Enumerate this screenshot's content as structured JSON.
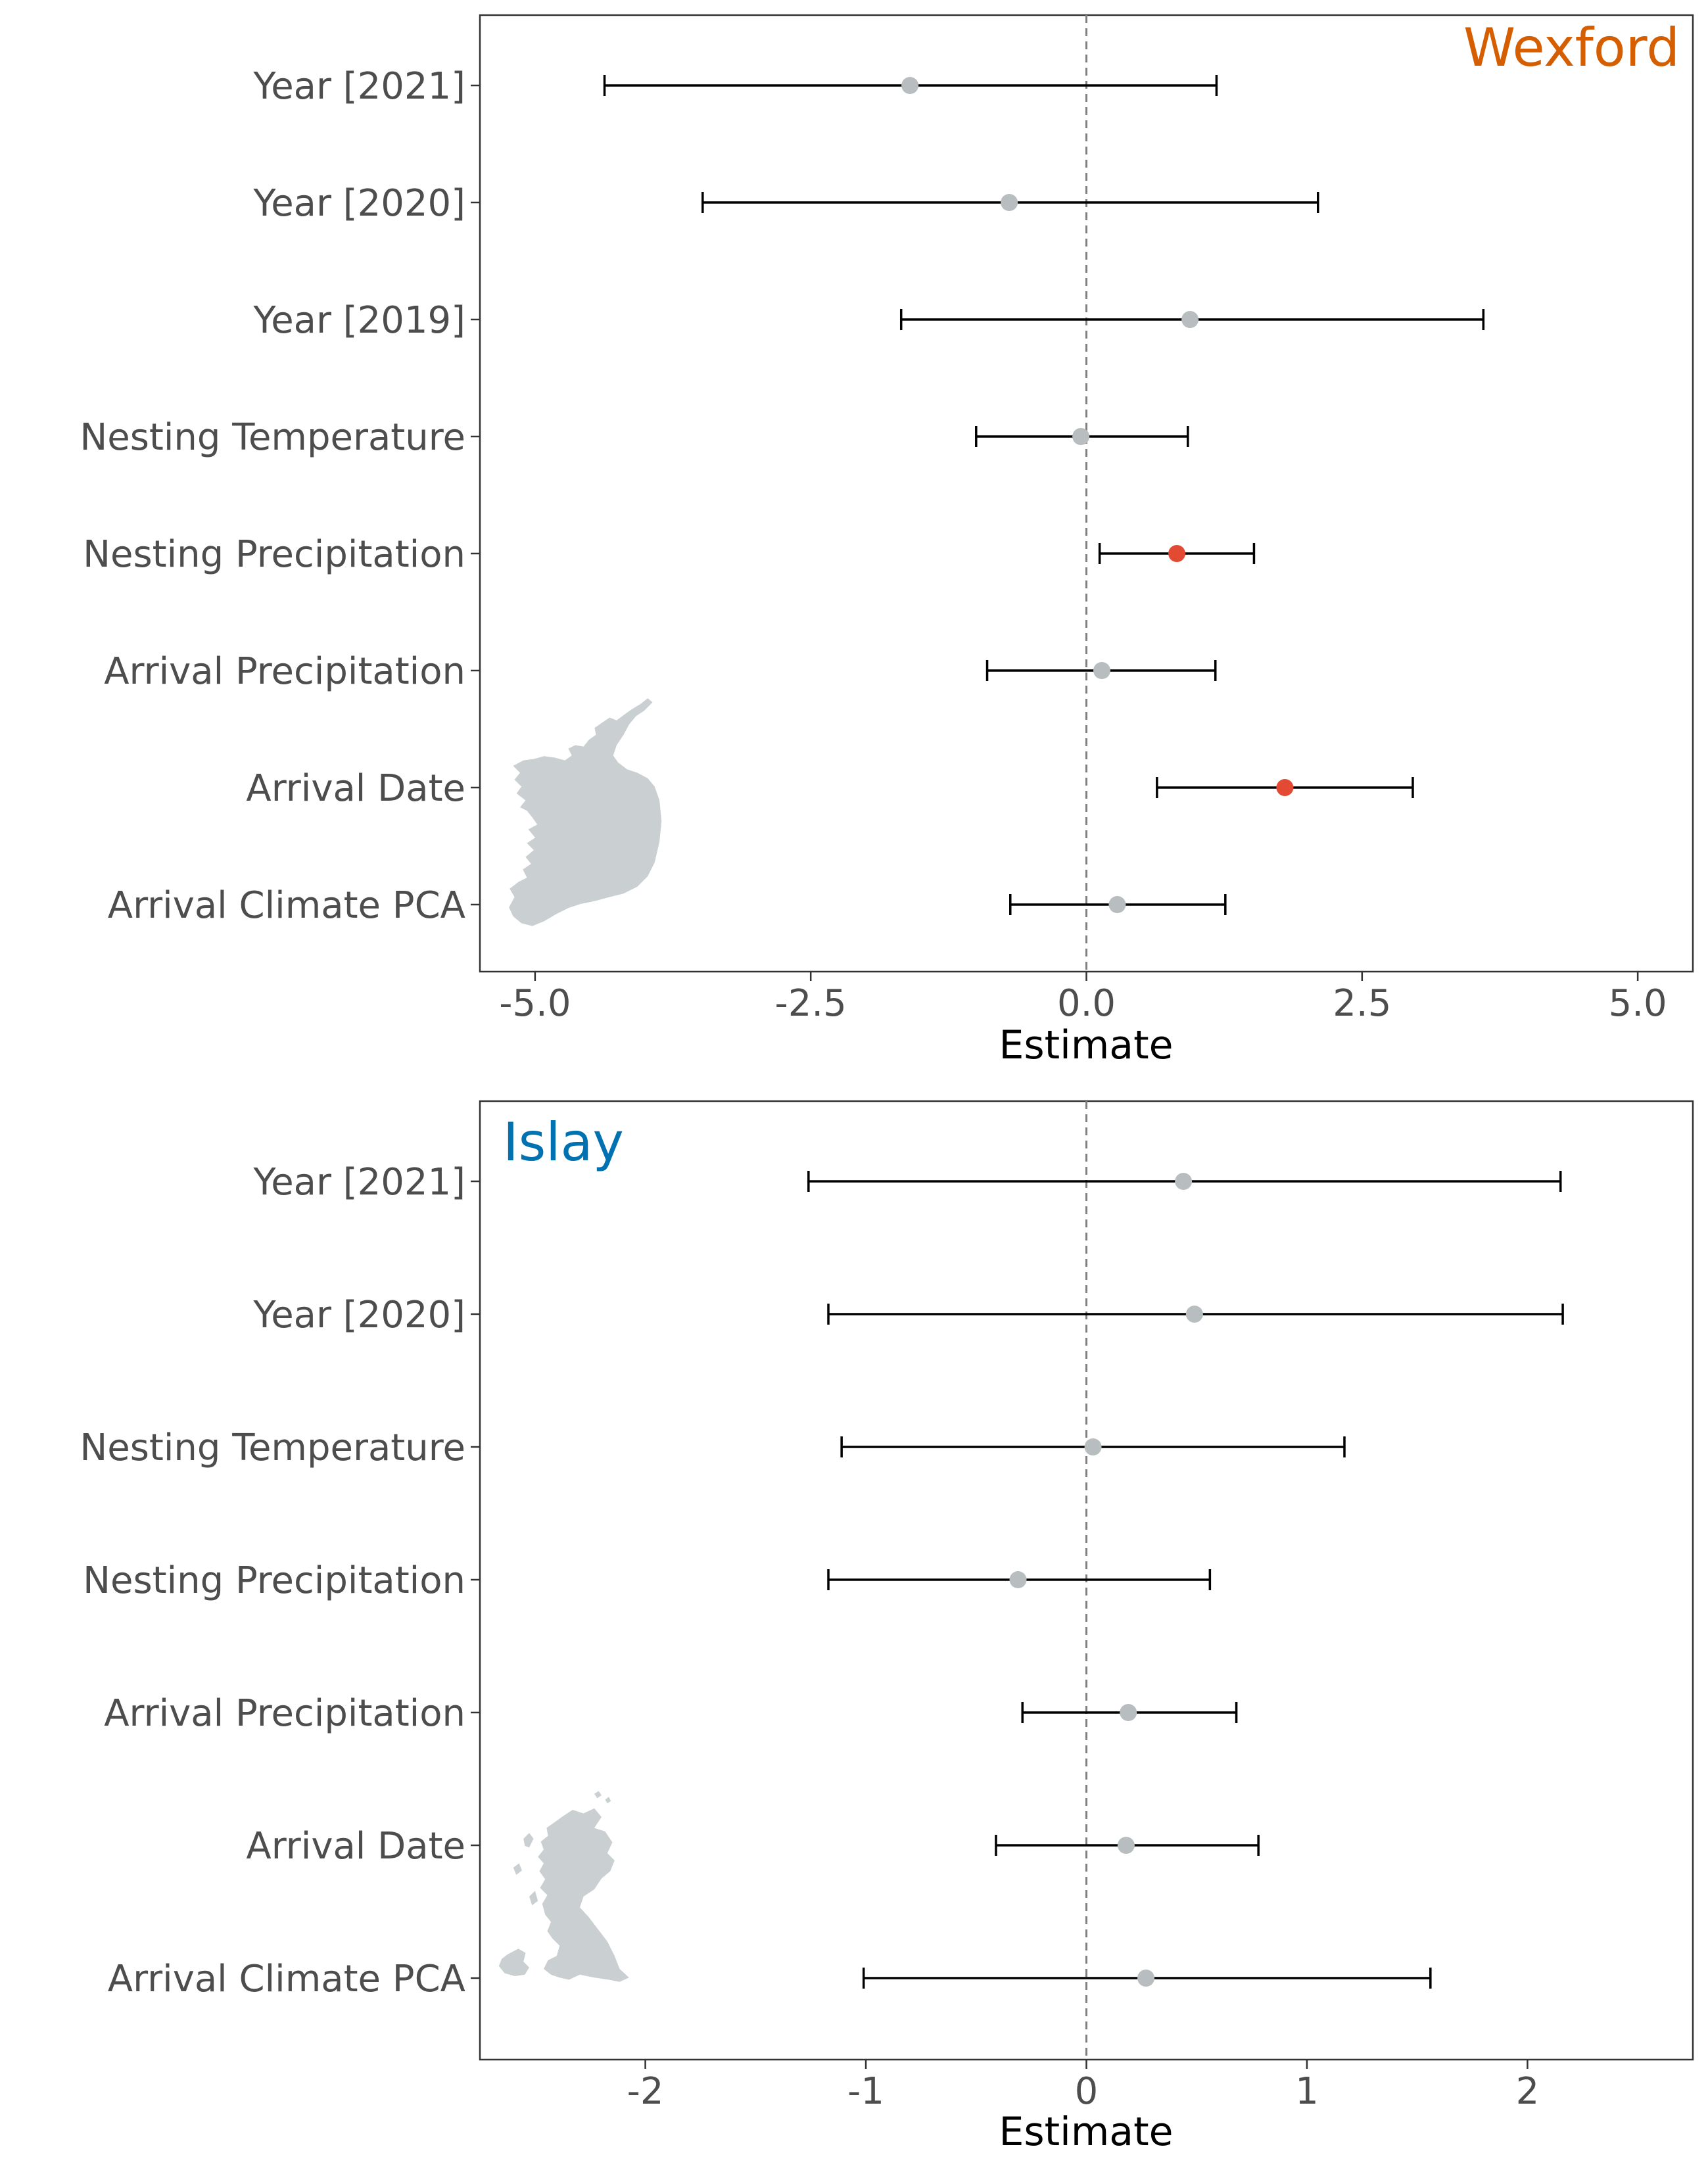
{
  "colors": {
    "significant": "#e34a33",
    "nonsignificant": "#b8bdbf",
    "wexford_label": "#d55e00",
    "islay_label": "#0072b2",
    "map_fill": "#cacfd1",
    "axis_text": "#4d4d4d",
    "zero_line": "#7f7f7f"
  },
  "chart_data": [
    {
      "type": "scatter",
      "subtype": "coefficient-plot-with-error-bars",
      "panel_label": "Wexford",
      "xlabel": "Estimate",
      "xlim": [
        -5.5,
        5.5
      ],
      "xticks": [
        -5.0,
        -2.5,
        0.0,
        2.5,
        5.0
      ],
      "xtick_labels": [
        "-5.0",
        "-2.5",
        "0.0",
        "2.5",
        "5.0"
      ],
      "reference_line": 0,
      "grid": false,
      "inset_icon": "ireland-map-icon",
      "rows": [
        {
          "label": "Year [2021]",
          "estimate": -1.6,
          "lower": -4.37,
          "upper": 1.18,
          "significant": false
        },
        {
          "label": "Year [2020]",
          "estimate": -0.7,
          "lower": -3.48,
          "upper": 2.1,
          "significant": false
        },
        {
          "label": "Year [2019]",
          "estimate": 0.94,
          "lower": -1.68,
          "upper": 3.6,
          "significant": false
        },
        {
          "label": "Nesting Temperature",
          "estimate": -0.05,
          "lower": -1.0,
          "upper": 0.92,
          "significant": false
        },
        {
          "label": "Nesting Precipitation",
          "estimate": 0.82,
          "lower": 0.12,
          "upper": 1.52,
          "significant": true
        },
        {
          "label": "Arrival Precipitation",
          "estimate": 0.14,
          "lower": -0.9,
          "upper": 1.17,
          "significant": false
        },
        {
          "label": "Arrival Date",
          "estimate": 1.8,
          "lower": 0.64,
          "upper": 2.96,
          "significant": true
        },
        {
          "label": "Arrival Climate PCA",
          "estimate": 0.28,
          "lower": -0.69,
          "upper": 1.26,
          "significant": false
        }
      ]
    },
    {
      "type": "scatter",
      "subtype": "coefficient-plot-with-error-bars",
      "panel_label": "Islay",
      "xlabel": "Estimate",
      "xlim": [
        -2.75,
        2.75
      ],
      "xticks": [
        -2,
        -1,
        0,
        1,
        2
      ],
      "xtick_labels": [
        "-2",
        "-1",
        "0",
        "1",
        "2"
      ],
      "reference_line": 0,
      "grid": false,
      "inset_icon": "scotland-map-icon",
      "rows": [
        {
          "label": "Year [2021]",
          "estimate": 0.44,
          "lower": -1.26,
          "upper": 2.15,
          "significant": false
        },
        {
          "label": "Year [2020]",
          "estimate": 0.49,
          "lower": -1.17,
          "upper": 2.16,
          "significant": false
        },
        {
          "label": "Nesting Temperature",
          "estimate": 0.03,
          "lower": -1.11,
          "upper": 1.17,
          "significant": false
        },
        {
          "label": "Nesting Precipitation",
          "estimate": -0.31,
          "lower": -1.17,
          "upper": 0.56,
          "significant": false
        },
        {
          "label": "Arrival Precipitation",
          "estimate": 0.19,
          "lower": -0.29,
          "upper": 0.68,
          "significant": false
        },
        {
          "label": "Arrival Date",
          "estimate": 0.18,
          "lower": -0.41,
          "upper": 0.78,
          "significant": false
        },
        {
          "label": "Arrival Climate PCA",
          "estimate": 0.27,
          "lower": -1.01,
          "upper": 1.56,
          "significant": false
        }
      ]
    }
  ]
}
